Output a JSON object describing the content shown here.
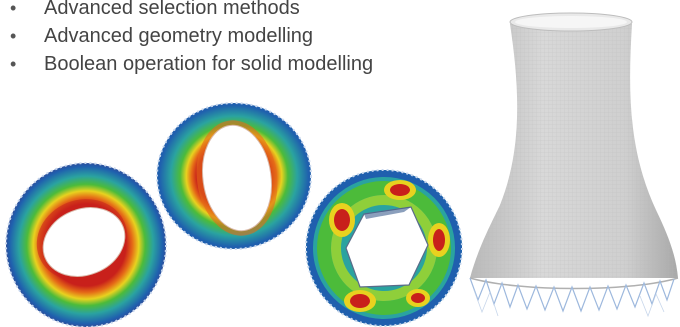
{
  "bullets": [
    {
      "marker": "•",
      "text": "Advanced selection methods"
    },
    {
      "marker": "•",
      "text": "Advanced geometry modelling"
    },
    {
      "marker": "•",
      "text": "Boolean operation for solid modelling"
    }
  ],
  "colors": {
    "text": "#444444",
    "fe_blue": "#1f5fae",
    "fe_cyan": "#2aa3a0",
    "fe_green": "#4cbb3a",
    "fe_yellow": "#e8d21f",
    "fe_orange": "#e56a17",
    "fe_red": "#c8201b",
    "mesh_grey": "#cfcfcf"
  },
  "images": [
    {
      "name": "tilted-ring-shell-result",
      "description_icon": "fem-contour-ring"
    },
    {
      "name": "oval-ring-shell-result",
      "description_icon": "fem-contour-ring"
    },
    {
      "name": "polygon-hole-ring-shell-result",
      "description_icon": "fem-contour-ring"
    },
    {
      "name": "cooling-tower-mesh",
      "description_icon": "fem-mesh-tower"
    }
  ]
}
